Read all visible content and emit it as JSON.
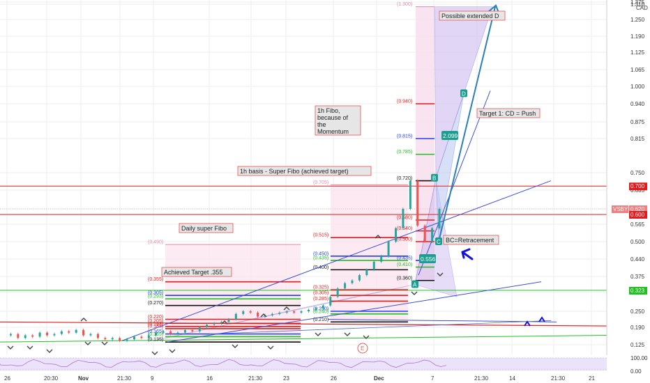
{
  "currency_label": "CAD",
  "colors": {
    "red": "#e31b1b",
    "green": "#20c020",
    "blue": "#1e3cff",
    "black": "#111111",
    "teal": "#1b9e8f",
    "purple_fill": "#c9b6f0",
    "pink_fill": "#f6d4e6",
    "grid": "#eeeeee",
    "up_candle": "#26a69a",
    "down_candle": "#ef5350",
    "annotation_bg": "#e6e6e6",
    "annotation_border": "#e85050"
  },
  "chart_data": {
    "type": "line",
    "symbol": "VSBY",
    "y_axis": {
      "ticks": [
        "1.375",
        "1.350",
        "1.310",
        "1.250",
        "1.190",
        "1.125",
        "1.065",
        "1.000",
        "0.940",
        "0.875",
        "0.815",
        "0.750",
        "0.685",
        "0.620",
        "0.565",
        "0.500",
        "0.440",
        "0.375",
        "0.315",
        "0.250",
        "0.190",
        "0.125"
      ],
      "ylim": [
        0.1,
        1.38
      ]
    },
    "x_axis": {
      "ticks": [
        "26",
        "20:30",
        "Nov",
        "21:30",
        "9",
        "16",
        "21:30",
        "23",
        "26",
        "Dec",
        "7",
        "21:30",
        "14",
        "21:30",
        "21"
      ]
    },
    "price_badges": [
      {
        "label": "0.700",
        "value": 0.7,
        "color": "#e31b1b"
      },
      {
        "label": "VSBY",
        "value": 0.62,
        "color": "#f08080"
      },
      {
        "label": "0.620",
        "value": 0.62,
        "color": "#f08080"
      },
      {
        "label": "0.600",
        "value": 0.6,
        "color": "#e31b1b"
      },
      {
        "label": "0.323",
        "value": 0.323,
        "color": "#20c020"
      }
    ],
    "price_series": {
      "name": "VSBY",
      "values": [
        0.16,
        0.165,
        0.15,
        0.16,
        0.155,
        0.17,
        0.16,
        0.165,
        0.175,
        0.17,
        0.18,
        0.16,
        0.165,
        0.15,
        0.145,
        0.15,
        0.14,
        0.145,
        0.155,
        0.15,
        0.16,
        0.17,
        0.175,
        0.165,
        0.17,
        0.18,
        0.175,
        0.19,
        0.2,
        0.205,
        0.21,
        0.22,
        0.24,
        0.25,
        0.245,
        0.23,
        0.235,
        0.24,
        0.245,
        0.25,
        0.245,
        0.25,
        0.255,
        0.26,
        0.27,
        0.3,
        0.33,
        0.35,
        0.36,
        0.38,
        0.4,
        0.43,
        0.45,
        0.5,
        0.55,
        0.62,
        0.72,
        0.56,
        0.5,
        0.55,
        0.62
      ]
    },
    "fib_daily": {
      "title": "Daily super Fibo",
      "levels": [
        {
          "label": "(0.490)",
          "value": 0.49,
          "color": "#e38aa8"
        },
        {
          "label": "(0.355)",
          "value": 0.355,
          "color": "#e31b1b"
        },
        {
          "label": "(0.305)",
          "value": 0.305,
          "color": "#1e3cff"
        },
        {
          "label": "(0.293)",
          "value": 0.293,
          "color": "#20c020"
        },
        {
          "label": "(0.270)",
          "value": 0.27,
          "color": "#111111"
        },
        {
          "label": "(0.220)",
          "value": 0.22,
          "color": "#e31b1b"
        },
        {
          "label": "(0.205)",
          "value": 0.205,
          "color": "#e31b1b"
        },
        {
          "label": "(0.193)",
          "value": 0.193,
          "color": "#e31b1b"
        },
        {
          "label": "(0.185)",
          "value": 0.185,
          "color": "#e31b1b"
        },
        {
          "label": "(0.165)",
          "value": 0.165,
          "color": "#1e3cff"
        },
        {
          "label": "(0.155)",
          "value": 0.155,
          "color": "#20c020"
        },
        {
          "label": "(0.135)",
          "value": 0.135,
          "color": "#111111"
        }
      ]
    },
    "fib_1h_basis": {
      "title": "1h basis - Super Fibo (achieved target)",
      "levels": [
        {
          "label": "(0.705)",
          "value": 0.705,
          "color": "#e38aa8"
        },
        {
          "label": "(0.515)",
          "value": 0.515,
          "color": "#e31b1b"
        },
        {
          "label": "(0.450)",
          "value": 0.45,
          "color": "#1e3cff"
        },
        {
          "label": "(0.435)",
          "value": 0.435,
          "color": "#20c020"
        },
        {
          "label": "(0.400)",
          "value": 0.4,
          "color": "#111111"
        },
        {
          "label": "(0.325)",
          "value": 0.325,
          "color": "#e31b1b"
        },
        {
          "label": "(0.305)",
          "value": 0.305,
          "color": "#e31b1b"
        },
        {
          "label": "(0.285)",
          "value": 0.285,
          "color": "#e31b1b"
        },
        {
          "label": "(0.250)",
          "value": 0.25,
          "color": "#1e3cff"
        },
        {
          "label": "(0.240)",
          "value": 0.24,
          "color": "#20c020"
        },
        {
          "label": "(0.210)",
          "value": 0.21,
          "color": "#111111"
        }
      ]
    },
    "fib_1h_momentum": {
      "title": "1h Fibo, because of the Momentum",
      "levels": [
        {
          "label": "(1.300)",
          "value": 1.3,
          "color": "#e38aa8"
        },
        {
          "label": "(0.940)",
          "value": 0.94,
          "color": "#e31b1b"
        },
        {
          "label": "(0.815)",
          "value": 0.815,
          "color": "#1e3cff"
        },
        {
          "label": "(0.785)",
          "value": 0.785,
          "color": "#20c020"
        },
        {
          "label": "(0.720)",
          "value": 0.72,
          "color": "#111111"
        },
        {
          "label": "(0.580)",
          "value": 0.58,
          "color": "#e31b1b"
        },
        {
          "label": "(0.540)",
          "value": 0.54,
          "color": "#e31b1b"
        },
        {
          "label": "(0.500)",
          "value": 0.5,
          "color": "#e31b1b"
        },
        {
          "label": "(0.435)",
          "value": 0.435,
          "color": "#1e3cff"
        },
        {
          "label": "(0.410)",
          "value": 0.41,
          "color": "#20c020"
        },
        {
          "label": "(0.360)",
          "value": 0.36,
          "color": "#111111"
        }
      ]
    },
    "pattern_points": [
      {
        "label": "A",
        "value": 0.345
      },
      {
        "label": "B",
        "value": 0.73
      },
      {
        "label": "C",
        "value": 0.5
      },
      {
        "label": "D",
        "value": 0.975
      }
    ],
    "value_badges": [
      {
        "label": "0.556",
        "value": 0.44
      },
      {
        "label": "2.099",
        "value": 0.825
      }
    ],
    "annotations": {
      "extended_d": "Possible extended D",
      "target1": "Target 1: CD = Push",
      "bc": "BC=Retracement",
      "achieved": "Achieved Target .355",
      "daily": "Daily super Fibo",
      "basis": "1h basis - Super Fibo (achieved target)",
      "momentum": "1h Fibo, because of the Momentum"
    },
    "earnings_marker": "E",
    "oscillator": {
      "ticks": [
        "100.00",
        "0.00"
      ]
    }
  }
}
